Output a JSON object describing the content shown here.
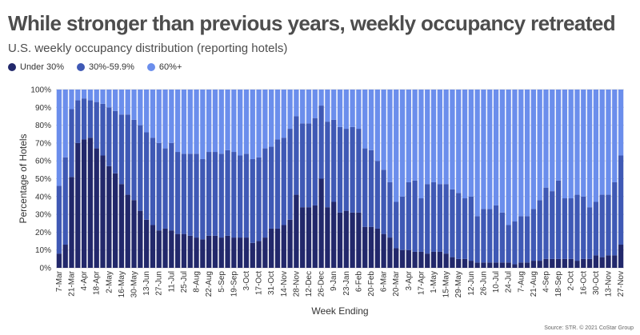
{
  "title": "While stronger than previous years, weekly occupancy retreated",
  "subtitle": "U.S. weekly occupancy distribution (reporting hotels)",
  "source": "Source: STR. © 2021 CoStar Group",
  "colors": {
    "low": "#22286b",
    "mid": "#3f59b5",
    "high": "#6b8eec"
  },
  "chart_data": {
    "type": "bar",
    "stacked": true,
    "xlabel": "Week Ending",
    "ylabel": "Percentage of Hotels",
    "ylim": [
      0,
      100
    ],
    "yticks": [
      "0%",
      "10%",
      "20%",
      "30%",
      "40%",
      "50%",
      "60%",
      "70%",
      "80%",
      "90%",
      "100%"
    ],
    "grid": true,
    "legend_position": "top-left",
    "categories": [
      "7-Mar",
      "14-Mar",
      "21-Mar",
      "28-Mar",
      "4-Apr",
      "11-Apr",
      "18-Apr",
      "25-Apr",
      "2-May",
      "9-May",
      "16-May",
      "23-May",
      "30-May",
      "6-Jun",
      "13-Jun",
      "20-Jun",
      "27-Jun",
      "4-Jul",
      "11-Jul",
      "18-Jul",
      "25-Jul",
      "1-Aug",
      "8-Aug",
      "15-Aug",
      "22-Aug",
      "29-Aug",
      "5-Sep",
      "12-Sep",
      "19-Sep",
      "26-Sep",
      "3-Oct",
      "10-Oct",
      "17-Oct",
      "24-Oct",
      "31-Oct",
      "7-Nov",
      "14-Nov",
      "21-Nov",
      "28-Nov",
      "5-Dec",
      "12-Dec",
      "19-Dec",
      "26-Dec",
      "2-Jan",
      "9-Jan",
      "16-Jan",
      "23-Jan",
      "30-Jan",
      "6-Feb",
      "13-Feb",
      "20-Feb",
      "27-Feb",
      "6-Mar",
      "13-Mar",
      "20-Mar",
      "27-Mar",
      "3-Apr",
      "10-Apr",
      "17-Apr",
      "24-Apr",
      "1-May",
      "8-May",
      "15-May",
      "22-May",
      "29-May",
      "5-Jun",
      "12-Jun",
      "19-Jun",
      "26-Jun",
      "3-Jul",
      "10-Jul",
      "17-Jul",
      "24-Jul",
      "31-Jul",
      "7-Aug",
      "14-Aug",
      "21-Aug",
      "28-Aug",
      "4-Sep",
      "11-Sep",
      "18-Sep",
      "25-Sep",
      "2-Oct",
      "9-Oct",
      "16-Oct",
      "23-Oct",
      "30-Oct",
      "6-Nov",
      "13-Nov",
      "20-Nov",
      "27-Nov"
    ],
    "tick_labels": [
      "7-Mar",
      "21-Mar",
      "4-Apr",
      "18-Apr",
      "2-May",
      "16-May",
      "30-May",
      "13-Jun",
      "27-Jun",
      "11-Jul",
      "25-Jul",
      "8-Aug",
      "22-Aug",
      "5-Sep",
      "19-Sep",
      "3-Oct",
      "17-Oct",
      "31-Oct",
      "14-Nov",
      "28-Nov",
      "12-Dec",
      "26-Dec",
      "9-Jan",
      "23-Jan",
      "6-Feb",
      "20-Feb",
      "6-Mar",
      "20-Mar",
      "3-Apr",
      "17-Apr",
      "1-May",
      "15-May",
      "29-May",
      "12-Jun",
      "26-Jun",
      "10-Jul",
      "24-Jul",
      "7-Aug",
      "21-Aug",
      "4-Sep",
      "18-Sep",
      "2-Oct",
      "16-Oct",
      "30-Oct",
      "13-Nov",
      "27-Nov"
    ],
    "series": [
      {
        "name": "Under 30%",
        "values": [
          8,
          13,
          51,
          70,
          72,
          73,
          67,
          63,
          57,
          53,
          47,
          41,
          38,
          32,
          27,
          24,
          21,
          22,
          21,
          19,
          19,
          18,
          17,
          16,
          18,
          18,
          17,
          18,
          17,
          17,
          17,
          14,
          15,
          17,
          22,
          22,
          24,
          27,
          41,
          34,
          34,
          35,
          50,
          34,
          37,
          31,
          32,
          31,
          31,
          23,
          23,
          22,
          19,
          17,
          11,
          10,
          10,
          9,
          9,
          8,
          9,
          9,
          8,
          6,
          5,
          5,
          4,
          3,
          3,
          3,
          3,
          3,
          3,
          2,
          3,
          3,
          4,
          4,
          5,
          5,
          5,
          5,
          5,
          4,
          5,
          5,
          7,
          6,
          7,
          7,
          13
        ]
      },
      {
        "name": "30%-59.9%",
        "values": [
          38,
          49,
          38,
          24,
          23,
          21,
          26,
          29,
          33,
          35,
          39,
          45,
          45,
          48,
          49,
          49,
          49,
          45,
          49,
          46,
          45,
          46,
          47,
          45,
          47,
          47,
          47,
          48,
          48,
          46,
          47,
          47,
          47,
          50,
          46,
          50,
          49,
          51,
          44,
          47,
          47,
          49,
          41,
          48,
          46,
          48,
          46,
          48,
          47,
          44,
          43,
          38,
          36,
          31,
          26,
          30,
          38,
          40,
          30,
          39,
          39,
          38,
          39,
          38,
          37,
          34,
          36,
          26,
          30,
          30,
          32,
          28,
          21,
          24,
          26,
          26,
          29,
          34,
          40,
          38,
          44,
          34,
          34,
          37,
          35,
          29,
          30,
          35,
          34,
          41,
          50
        ]
      },
      {
        "name": "60%+",
        "values": [
          54,
          38,
          11,
          6,
          5,
          6,
          7,
          8,
          10,
          12,
          14,
          14,
          17,
          20,
          24,
          27,
          30,
          33,
          30,
          35,
          36,
          36,
          36,
          39,
          35,
          35,
          36,
          34,
          35,
          37,
          36,
          39,
          38,
          33,
          32,
          28,
          27,
          22,
          15,
          19,
          19,
          16,
          9,
          18,
          17,
          21,
          22,
          21,
          22,
          33,
          34,
          40,
          45,
          52,
          63,
          60,
          52,
          51,
          61,
          53,
          52,
          53,
          53,
          56,
          58,
          61,
          60,
          71,
          67,
          67,
          65,
          69,
          76,
          74,
          71,
          71,
          67,
          62,
          55,
          57,
          51,
          61,
          61,
          59,
          60,
          66,
          63,
          59,
          59,
          52,
          37
        ]
      }
    ]
  }
}
